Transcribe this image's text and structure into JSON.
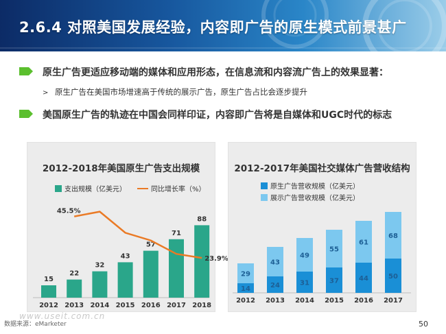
{
  "header": {
    "title": "2.6.4 对照美国发展经验，内容即广告的原生模式前景甚广"
  },
  "bullets": [
    {
      "text": "原生广告更适应移动端的媒体和应用形态，在信息流和内容流广告上的效果显著：",
      "sub": "原生广告在美国市场增速高于传统的展示广告，原生广告占比会逐步提升"
    },
    {
      "text": "美国原生广告的轨迹在中国会同样印证，内容即广告将是自媒体和UGC时代的标志"
    }
  ],
  "chart_data": [
    {
      "type": "bar",
      "title": "2012-2018年美国原生广告支出规模",
      "categories": [
        "2012",
        "2013",
        "2014",
        "2015",
        "2016",
        "2017",
        "2018"
      ],
      "series": [
        {
          "name": "支出规模（亿美元）",
          "values": [
            15,
            22,
            32,
            43,
            57,
            71,
            88
          ],
          "color": "#2aa68a"
        },
        {
          "name": "同比增长率（%）",
          "type": "line",
          "values": [
            null,
            45.5,
            48.0,
            37.0,
            33.0,
            26.0,
            23.9
          ],
          "color": "#ea7a25"
        }
      ],
      "point_labels": {
        "2013": "45.5%",
        "2018": "23.9%"
      },
      "ylim": [
        0,
        100
      ]
    },
    {
      "type": "bar",
      "stacked": true,
      "title": "2012-2017年美国社交媒体广告营收结构",
      "categories": [
        "2012",
        "2013",
        "2014",
        "2015",
        "2016",
        "2017"
      ],
      "series": [
        {
          "name": "原生广告营收规模（亿美元）",
          "values": [
            14,
            24,
            31,
            37,
            44,
            50
          ],
          "color": "#1a8fd6"
        },
        {
          "name": "展示广告营收规模（亿美元）",
          "values": [
            29,
            43,
            49,
            55,
            61,
            68
          ],
          "color": "#7cc8ef"
        }
      ],
      "ylim": [
        0,
        130
      ]
    }
  ],
  "footer": {
    "source": "数据来源：eMarketer",
    "page": "50",
    "watermark": "www.useit.com.cn"
  }
}
